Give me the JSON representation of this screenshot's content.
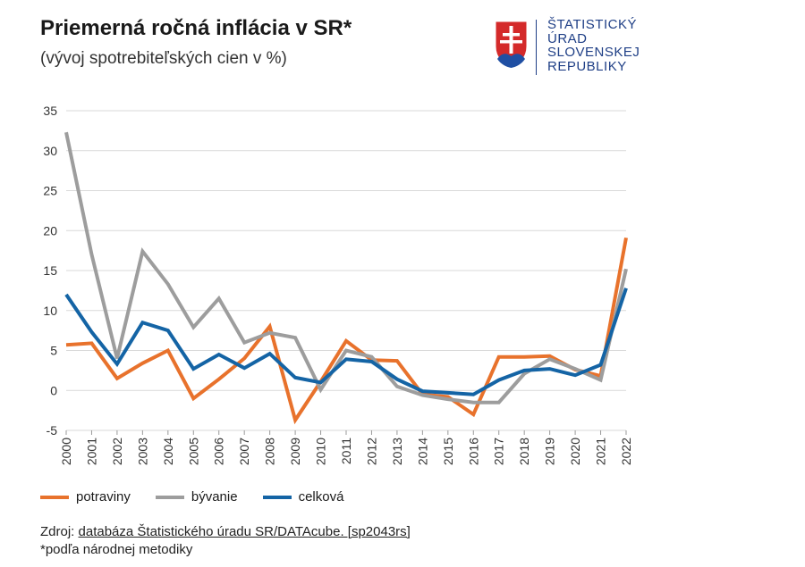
{
  "header": {
    "title": "Priemerná ročná inflácia v SR*",
    "subtitle": "(vývoj spotrebiteľských cien v %)"
  },
  "logo": {
    "line1": "ŠTATISTICKÝ",
    "line2": "ÚRAD",
    "line3": "SLOVENSKEJ",
    "line4": "REPUBLIKY",
    "icon": "slovak-coat-of-arms-icon"
  },
  "footer": {
    "source_prefix": "Zdroj: ",
    "source_link": "databáza Štatistického úradu SR/DATAcube. [sp2043rs]",
    "note": "*podľa národnej metodiky"
  },
  "colors": {
    "potraviny": "#e8722c",
    "byvanie": "#9d9d9d",
    "celkova": "#1464a5",
    "grid": "#d9d9d9"
  },
  "chart_data": {
    "type": "line",
    "title": "Priemerná ročná inflácia v SR*",
    "subtitle": "(vývoj spotrebiteľských cien v %)",
    "xlabel": "",
    "ylabel": "",
    "ylim": [
      -5,
      35
    ],
    "yticks": [
      35,
      30,
      25,
      20,
      15,
      10,
      5,
      0,
      -5
    ],
    "grid": true,
    "legend": "bottom-left",
    "x": [
      "2000",
      "2001",
      "2002",
      "2003",
      "2004",
      "2005",
      "2006",
      "2007",
      "2008",
      "2009",
      "2010",
      "2011",
      "2012",
      "2013",
      "2014",
      "2015",
      "2016",
      "2017",
      "2018",
      "2019",
      "2020",
      "2021",
      "2022"
    ],
    "series": [
      {
        "name": "potraviny",
        "color": "#e8722c",
        "values": [
          5.7,
          5.9,
          1.5,
          3.4,
          5.0,
          -1.0,
          1.4,
          4.0,
          8.0,
          -3.7,
          1.1,
          6.2,
          3.8,
          3.7,
          -0.5,
          -0.8,
          -3.0,
          4.2,
          4.2,
          4.3,
          2.6,
          1.8,
          19.1
        ]
      },
      {
        "name": "bývanie",
        "color": "#9d9d9d",
        "values": [
          32.3,
          17.0,
          4.0,
          17.4,
          13.3,
          7.9,
          11.5,
          6.0,
          7.2,
          6.6,
          0.1,
          5.0,
          4.2,
          0.5,
          -0.6,
          -1.1,
          -1.5,
          -1.5,
          2.1,
          3.9,
          2.7,
          1.3,
          15.2
        ]
      },
      {
        "name": "celková",
        "color": "#1464a5",
        "values": [
          12.0,
          7.3,
          3.3,
          8.5,
          7.5,
          2.7,
          4.5,
          2.8,
          4.6,
          1.6,
          1.0,
          3.9,
          3.6,
          1.4,
          -0.1,
          -0.3,
          -0.5,
          1.3,
          2.5,
          2.7,
          1.9,
          3.2,
          12.8
        ]
      }
    ]
  }
}
